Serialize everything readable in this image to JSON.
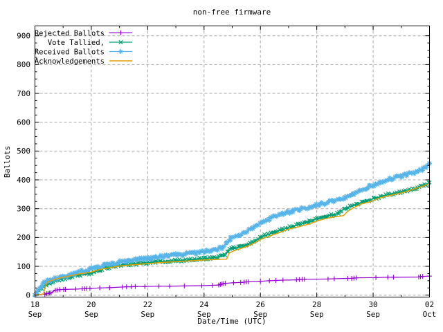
{
  "chart_data": {
    "type": "line",
    "title": "non-free firmware",
    "xlabel": "Date/Time (UTC)",
    "ylabel": "Ballots",
    "grid": true,
    "legend_position": "top-left",
    "x_axis": {
      "unit_days": 14,
      "minor_step_days": 1,
      "ticks": [
        {
          "day": 0,
          "date": "18",
          "month": "Sep"
        },
        {
          "day": 2,
          "date": "20",
          "month": "Sep"
        },
        {
          "day": 4,
          "date": "22",
          "month": "Sep"
        },
        {
          "day": 6,
          "date": "24",
          "month": "Sep"
        },
        {
          "day": 8,
          "date": "26",
          "month": "Sep"
        },
        {
          "day": 10,
          "date": "28",
          "month": "Sep"
        },
        {
          "day": 12,
          "date": "30",
          "month": "Sep"
        },
        {
          "day": 14,
          "date": "02",
          "month": "Oct"
        }
      ]
    },
    "y_axis": {
      "min": 0,
      "max": 900,
      "tick_step": 100,
      "minor_step": 25,
      "ticks": [
        0,
        100,
        200,
        300,
        400,
        500,
        600,
        700,
        800,
        900
      ]
    },
    "series": [
      {
        "name": "Rejected Ballots",
        "color": "#9400d3",
        "marker": "plus",
        "dense": false,
        "points_day_value": [
          [
            0.35,
            3
          ],
          [
            0.42,
            5
          ],
          [
            0.47,
            6
          ],
          [
            0.52,
            7
          ],
          [
            0.57,
            8
          ],
          [
            0.72,
            17
          ],
          [
            0.78,
            18
          ],
          [
            0.88,
            19
          ],
          [
            1.02,
            20
          ],
          [
            1.08,
            20
          ],
          [
            1.45,
            21
          ],
          [
            1.68,
            22
          ],
          [
            1.76,
            22
          ],
          [
            1.84,
            23
          ],
          [
            1.95,
            23
          ],
          [
            2.3,
            25
          ],
          [
            2.65,
            26
          ],
          [
            3.1,
            28
          ],
          [
            3.25,
            29
          ],
          [
            3.42,
            29
          ],
          [
            3.56,
            30
          ],
          [
            3.9,
            30
          ],
          [
            4.4,
            31
          ],
          [
            4.78,
            31
          ],
          [
            5.3,
            32
          ],
          [
            5.92,
            33
          ],
          [
            6.3,
            34
          ],
          [
            6.52,
            35
          ],
          [
            6.58,
            37
          ],
          [
            6.64,
            39
          ],
          [
            6.7,
            40
          ],
          [
            6.76,
            41
          ],
          [
            7.05,
            43
          ],
          [
            7.3,
            44
          ],
          [
            7.42,
            45
          ],
          [
            7.5,
            46
          ],
          [
            7.58,
            46
          ],
          [
            8.0,
            48
          ],
          [
            8.32,
            50
          ],
          [
            8.55,
            51
          ],
          [
            8.8,
            52
          ],
          [
            9.28,
            53
          ],
          [
            9.38,
            54
          ],
          [
            9.48,
            55
          ],
          [
            9.56,
            55
          ],
          [
            10.4,
            56
          ],
          [
            10.62,
            57
          ],
          [
            11.1,
            58
          ],
          [
            11.24,
            58
          ],
          [
            11.32,
            59
          ],
          [
            11.4,
            60
          ],
          [
            12.1,
            61
          ],
          [
            12.52,
            62
          ],
          [
            12.72,
            62
          ],
          [
            13.62,
            63
          ],
          [
            13.68,
            64
          ],
          [
            13.76,
            65
          ],
          [
            14.0,
            66
          ]
        ]
      },
      {
        "name": "Vote Tallied,",
        "color": "#009e73",
        "marker": "cross",
        "dense": true,
        "points_day_value": [
          [
            0,
            0
          ],
          [
            0.08,
            8
          ],
          [
            0.15,
            16
          ],
          [
            0.25,
            25
          ],
          [
            0.35,
            32
          ],
          [
            0.5,
            42
          ],
          [
            0.7,
            50
          ],
          [
            0.9,
            55
          ],
          [
            1.1,
            59
          ],
          [
            1.3,
            64
          ],
          [
            1.5,
            69
          ],
          [
            1.7,
            72
          ],
          [
            1.9,
            75
          ],
          [
            2.1,
            80
          ],
          [
            2.3,
            88
          ],
          [
            2.5,
            93
          ],
          [
            2.7,
            97
          ],
          [
            2.9,
            102
          ],
          [
            3.1,
            105
          ],
          [
            3.4,
            108
          ],
          [
            3.7,
            110
          ],
          [
            4.0,
            113
          ],
          [
            4.3,
            115
          ],
          [
            4.6,
            117
          ],
          [
            5.0,
            120
          ],
          [
            5.4,
            122
          ],
          [
            5.8,
            125
          ],
          [
            6.1,
            128
          ],
          [
            6.4,
            131
          ],
          [
            6.6,
            134
          ],
          [
            6.75,
            139
          ],
          [
            6.85,
            152
          ],
          [
            6.95,
            160
          ],
          [
            7.1,
            164
          ],
          [
            7.3,
            169
          ],
          [
            7.5,
            176
          ],
          [
            7.7,
            183
          ],
          [
            7.9,
            193
          ],
          [
            8.0,
            200
          ],
          [
            8.2,
            208
          ],
          [
            8.4,
            215
          ],
          [
            8.6,
            221
          ],
          [
            8.8,
            228
          ],
          [
            9.0,
            236
          ],
          [
            9.2,
            240
          ],
          [
            9.4,
            245
          ],
          [
            9.6,
            251
          ],
          [
            9.8,
            258
          ],
          [
            10.0,
            266
          ],
          [
            10.2,
            270
          ],
          [
            10.4,
            275
          ],
          [
            10.6,
            279
          ],
          [
            10.75,
            283
          ],
          [
            10.9,
            295
          ],
          [
            11.0,
            301
          ],
          [
            11.2,
            307
          ],
          [
            11.4,
            314
          ],
          [
            11.6,
            322
          ],
          [
            11.8,
            328
          ],
          [
            12.0,
            334
          ],
          [
            12.2,
            340
          ],
          [
            12.4,
            346
          ],
          [
            12.6,
            350
          ],
          [
            12.8,
            354
          ],
          [
            13.0,
            358
          ],
          [
            13.2,
            362
          ],
          [
            13.4,
            368
          ],
          [
            13.6,
            374
          ],
          [
            13.75,
            378
          ],
          [
            13.9,
            385
          ],
          [
            14.0,
            391
          ]
        ]
      },
      {
        "name": "Received Ballots",
        "color": "#56b4e9",
        "marker": "asterisk",
        "dense": true,
        "points_day_value": [
          [
            0,
            0
          ],
          [
            0.06,
            6
          ],
          [
            0.12,
            18
          ],
          [
            0.2,
            30
          ],
          [
            0.3,
            40
          ],
          [
            0.4,
            47
          ],
          [
            0.5,
            52
          ],
          [
            0.65,
            57
          ],
          [
            0.8,
            60
          ],
          [
            1.0,
            65
          ],
          [
            1.2,
            71
          ],
          [
            1.4,
            77
          ],
          [
            1.6,
            82
          ],
          [
            1.8,
            86
          ],
          [
            2.0,
            91
          ],
          [
            2.2,
            97
          ],
          [
            2.4,
            102
          ],
          [
            2.6,
            106
          ],
          [
            2.8,
            110
          ],
          [
            3.0,
            114
          ],
          [
            3.2,
            118
          ],
          [
            3.5,
            122
          ],
          [
            3.8,
            126
          ],
          [
            4.0,
            128
          ],
          [
            4.3,
            131
          ],
          [
            4.6,
            135
          ],
          [
            5.0,
            140
          ],
          [
            5.3,
            142
          ],
          [
            5.6,
            145
          ],
          [
            6.0,
            150
          ],
          [
            6.2,
            153
          ],
          [
            6.4,
            158
          ],
          [
            6.6,
            164
          ],
          [
            6.72,
            170
          ],
          [
            6.8,
            180
          ],
          [
            6.88,
            193
          ],
          [
            7.0,
            200
          ],
          [
            7.15,
            206
          ],
          [
            7.3,
            211
          ],
          [
            7.5,
            220
          ],
          [
            7.7,
            232
          ],
          [
            7.9,
            243
          ],
          [
            8.0,
            250
          ],
          [
            8.2,
            259
          ],
          [
            8.4,
            268
          ],
          [
            8.6,
            274
          ],
          [
            8.8,
            281
          ],
          [
            9.0,
            288
          ],
          [
            9.2,
            293
          ],
          [
            9.4,
            298
          ],
          [
            9.6,
            302
          ],
          [
            9.8,
            307
          ],
          [
            10.0,
            313
          ],
          [
            10.2,
            317
          ],
          [
            10.4,
            322
          ],
          [
            10.6,
            326
          ],
          [
            10.8,
            331
          ],
          [
            11.0,
            337
          ],
          [
            11.2,
            344
          ],
          [
            11.4,
            356
          ],
          [
            11.6,
            368
          ],
          [
            11.8,
            374
          ],
          [
            12.0,
            381
          ],
          [
            12.2,
            389
          ],
          [
            12.35,
            396
          ],
          [
            12.5,
            401
          ],
          [
            12.7,
            406
          ],
          [
            12.9,
            410
          ],
          [
            13.1,
            415
          ],
          [
            13.3,
            421
          ],
          [
            13.5,
            427
          ],
          [
            13.65,
            432
          ],
          [
            13.8,
            440
          ],
          [
            13.9,
            448
          ],
          [
            14.0,
            456
          ]
        ]
      },
      {
        "name": "Acknowledgements",
        "color": "#e69f00",
        "marker": "none",
        "dense": false,
        "points_day_value": [
          [
            0,
            0
          ],
          [
            0.3,
            4
          ],
          [
            0.36,
            26
          ],
          [
            0.42,
            44
          ],
          [
            0.55,
            50
          ],
          [
            0.7,
            55
          ],
          [
            1.0,
            62
          ],
          [
            1.3,
            68
          ],
          [
            1.6,
            74
          ],
          [
            2.0,
            80
          ],
          [
            2.3,
            89
          ],
          [
            2.6,
            94
          ],
          [
            3.0,
            101
          ],
          [
            3.4,
            105
          ],
          [
            3.8,
            108
          ],
          [
            4.2,
            111
          ],
          [
            4.6,
            114
          ],
          [
            5.0,
            116
          ],
          [
            5.5,
            119
          ],
          [
            6.0,
            122
          ],
          [
            6.5,
            124
          ],
          [
            6.8,
            125
          ],
          [
            6.9,
            147
          ],
          [
            7.1,
            155
          ],
          [
            7.4,
            165
          ],
          [
            7.7,
            176
          ],
          [
            8.0,
            193
          ],
          [
            8.3,
            204
          ],
          [
            8.6,
            214
          ],
          [
            9.0,
            229
          ],
          [
            9.4,
            238
          ],
          [
            9.8,
            249
          ],
          [
            10.0,
            257
          ],
          [
            10.3,
            265
          ],
          [
            10.6,
            271
          ],
          [
            10.95,
            276
          ],
          [
            11.1,
            291
          ],
          [
            11.3,
            303
          ],
          [
            11.6,
            317
          ],
          [
            11.9,
            324
          ],
          [
            12.2,
            336
          ],
          [
            12.5,
            344
          ],
          [
            12.8,
            350
          ],
          [
            13.1,
            357
          ],
          [
            13.4,
            367
          ],
          [
            13.6,
            373
          ],
          [
            13.8,
            379
          ],
          [
            13.95,
            385
          ],
          [
            14.0,
            387
          ]
        ]
      }
    ],
    "style": {
      "grid_color": "#a8a8a8",
      "border_color": "#000000",
      "background": "#ffffff"
    }
  }
}
